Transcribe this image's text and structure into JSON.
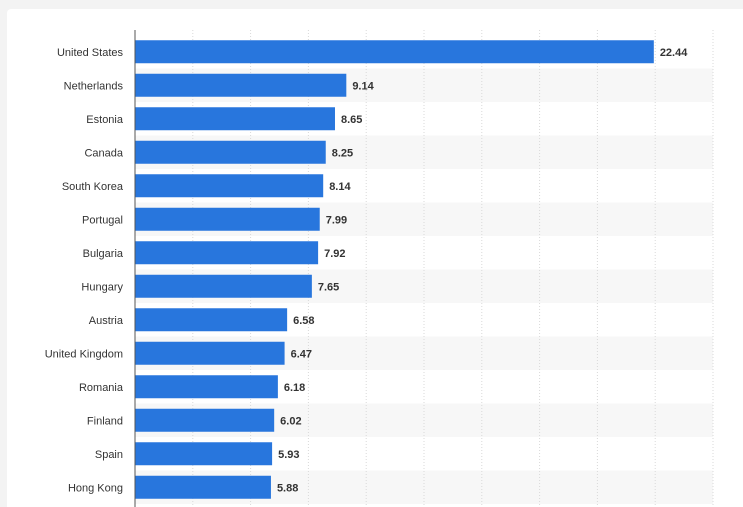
{
  "chart_data": {
    "type": "bar",
    "orientation": "horizontal",
    "categories": [
      "United States",
      "Netherlands",
      "Estonia",
      "Canada",
      "South Korea",
      "Portugal",
      "Bulgaria",
      "Hungary",
      "Austria",
      "United Kingdom",
      "Romania",
      "Finland",
      "Spain",
      "Hong Kong"
    ],
    "values": [
      22.44,
      9.14,
      8.65,
      8.25,
      8.14,
      7.99,
      7.92,
      7.65,
      6.58,
      6.47,
      6.18,
      6.02,
      5.93,
      5.88
    ],
    "value_labels": [
      "22.44",
      "9.14",
      "8.65",
      "8.25",
      "8.14",
      "7.99",
      "7.92",
      "7.65",
      "6.58",
      "6.47",
      "6.18",
      "6.02",
      "5.93",
      "5.88"
    ],
    "title": "",
    "xlabel": "",
    "ylabel": "",
    "xlim": [
      0,
      25
    ],
    "grid": true,
    "colors": {
      "bar": "#2876dd",
      "grid": "#d9d9d9",
      "axis": "#555555",
      "stripe": "#f7f7f7"
    }
  }
}
